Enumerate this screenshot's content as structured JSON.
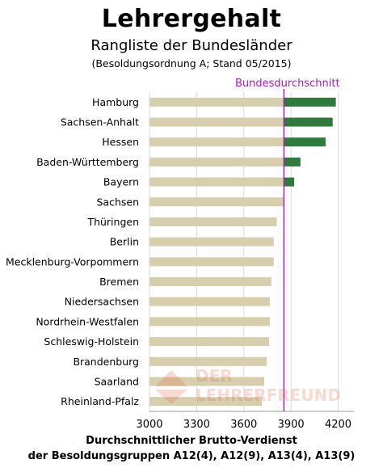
{
  "title": "Lehrergehalt",
  "subtitle": "Rangliste der Bundesländer",
  "note": "(Besoldungsordnung A; Stand 05/2015)",
  "watermark": {
    "line1": "DER",
    "line2": "LEHRERFREUND"
  },
  "colors": {
    "bar": "#d7ceae",
    "above_average": "#2f7a3c",
    "average_line": "#a81cc4",
    "grid": "#d9d9d9"
  },
  "chart_data": {
    "type": "bar",
    "orientation": "horizontal",
    "title": "Lehrergehalt",
    "subtitle": "Rangliste der Bundesländer",
    "xlabel": "Durchschnittlicher Brutto-Verdienst",
    "xlabel_line2": "der Besoldungsgruppen A12(4), A12(9), A13(4), A13(9)",
    "xlim": [
      3000,
      4300
    ],
    "xticks": [
      "3000",
      "3300",
      "3600",
      "3900",
      "4200"
    ],
    "grid": true,
    "average_label": "Bundesdurchschnitt",
    "average": 3855,
    "categories": [
      "Hamburg",
      "Sachsen-Anhalt",
      "Hessen",
      "Baden-Württemberg",
      "Bayern",
      "Sachsen",
      "Thüringen",
      "Berlin",
      "Mecklenburg-Vorpommern",
      "Bremen",
      "Niedersachsen",
      "Nordrhein-Westfalen",
      "Schleswig-Holstein",
      "Brandenburg",
      "Saarland",
      "Rheinland-Pfalz"
    ],
    "values": [
      4185,
      4165,
      4120,
      3960,
      3920,
      3855,
      3810,
      3790,
      3790,
      3775,
      3765,
      3765,
      3760,
      3745,
      3730,
      3715
    ]
  }
}
